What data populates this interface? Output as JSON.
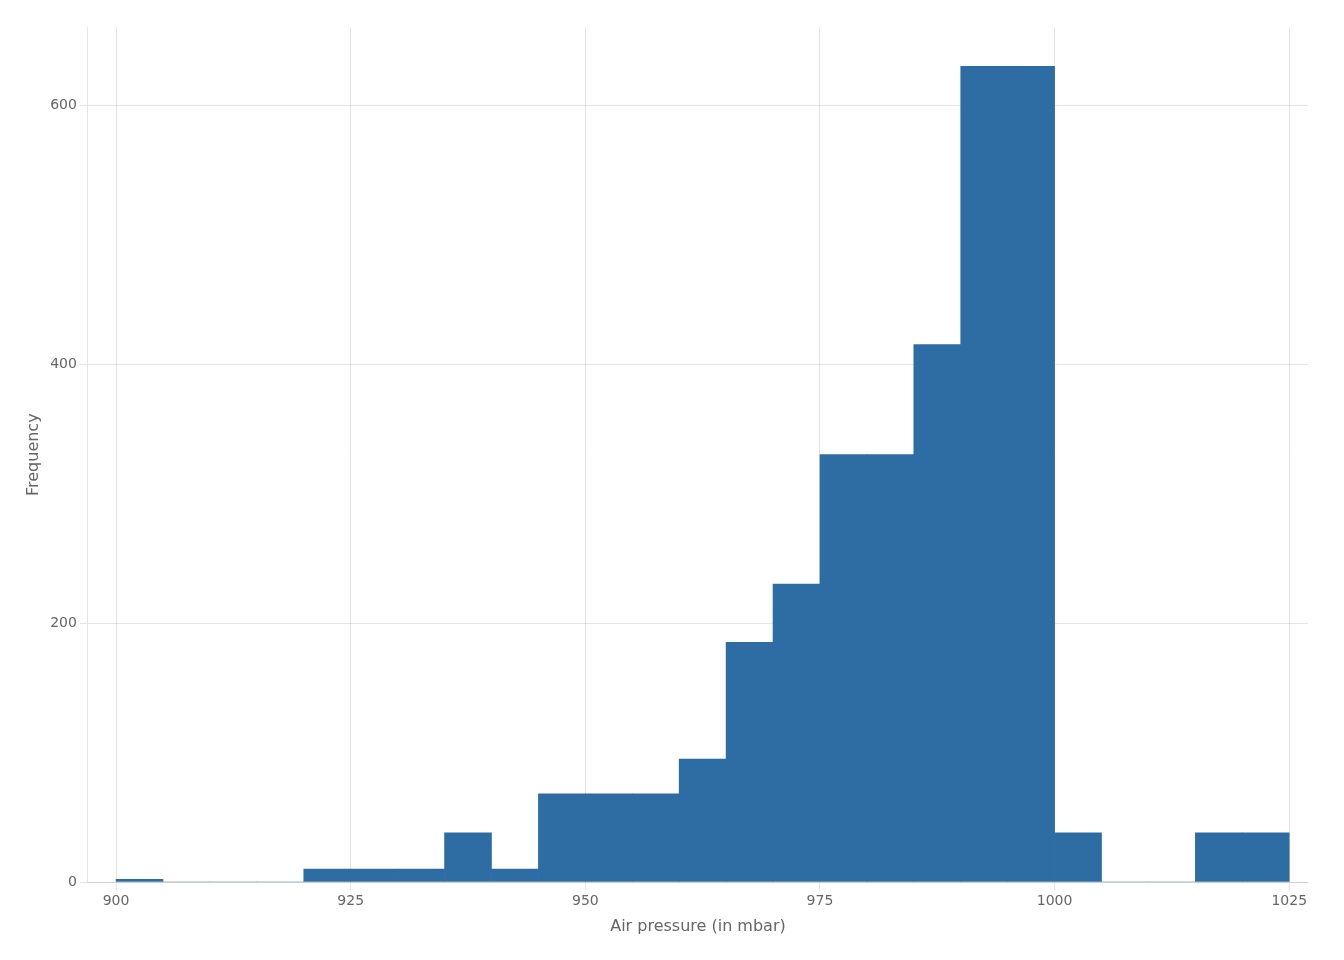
{
  "chart_data": {
    "type": "histogram",
    "bins": [
      900,
      905,
      910,
      915,
      920,
      925,
      930,
      935,
      940,
      945,
      950,
      955,
      960,
      965,
      970,
      975,
      980,
      985,
      990,
      995,
      1000,
      1005,
      1010,
      1015,
      1020,
      1025
    ],
    "values": [
      2,
      0,
      0,
      0,
      10,
      10,
      10,
      38,
      10,
      68,
      68,
      68,
      95,
      185,
      230,
      330,
      330,
      415,
      630,
      630,
      38,
      0,
      0,
      38,
      38
    ],
    "color": "#2e6da4",
    "xlabel": "Air pressure (in mbar)",
    "ylabel": "Frequency",
    "xlim": [
      897,
      1027
    ],
    "ylim": [
      0,
      660
    ],
    "xticks": [
      900,
      925,
      950,
      975,
      1000,
      1025
    ],
    "yticks": [
      0,
      200,
      400,
      600
    ],
    "grid": true
  }
}
